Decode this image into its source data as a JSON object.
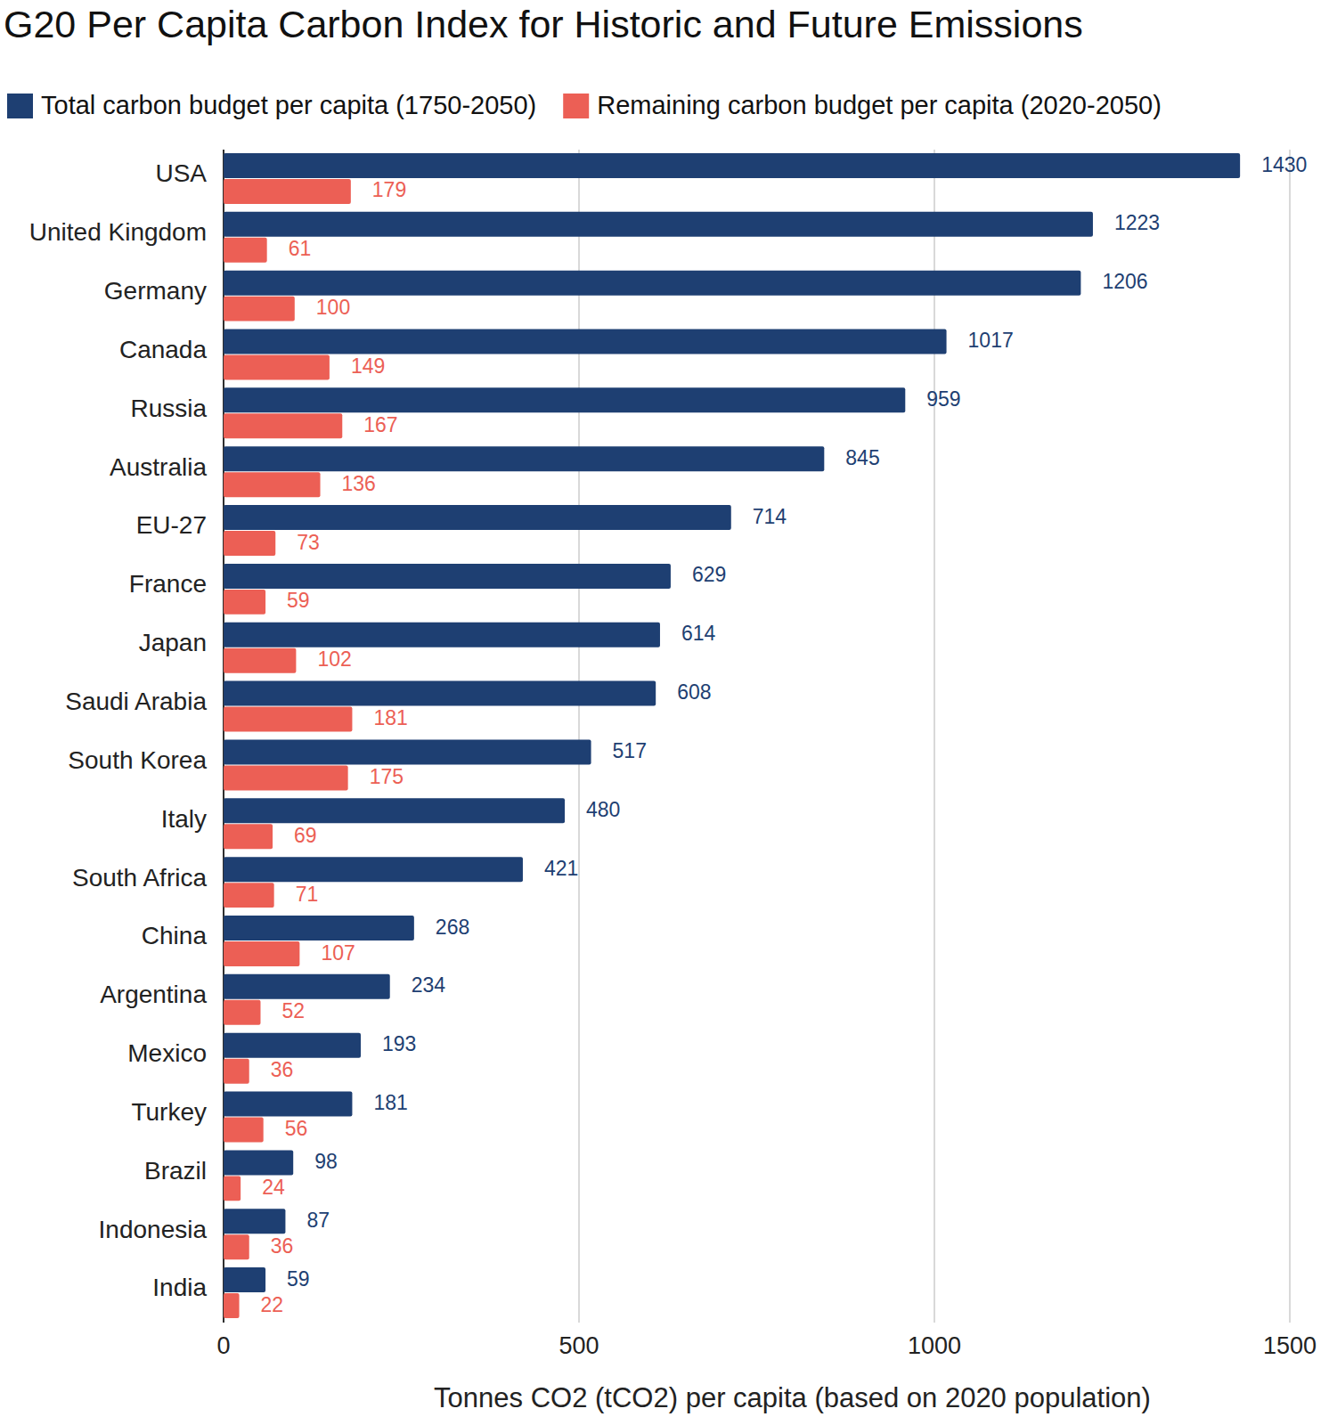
{
  "chart_data": {
    "type": "bar",
    "orientation": "horizontal",
    "title": "G20 Per Capita Carbon Index for Historic and Future Emissions",
    "x_label": "Tonnes CO2 (tCO2) per capita (based on 2020 population)",
    "categories": [
      "USA",
      "United Kingdom",
      "Germany",
      "Canada",
      "Russia",
      "Australia",
      "EU-27",
      "France",
      "Japan",
      "Saudi Arabia",
      "South Korea",
      "Italy",
      "South Africa",
      "China",
      "Argentina",
      "Mexico",
      "Turkey",
      "Brazil",
      "Indonesia",
      "India"
    ],
    "series": [
      {
        "name": "Total carbon budget per capita (1750-2050)",
        "color": "#1e3f72",
        "values": [
          1430,
          1223,
          1206,
          1017,
          959,
          845,
          714,
          629,
          614,
          608,
          517,
          480,
          421,
          268,
          234,
          193,
          181,
          98,
          87,
          59
        ]
      },
      {
        "name": "Remaining carbon budget per capita (2020-2050)",
        "color": "#ec5f55",
        "values": [
          179,
          61,
          100,
          149,
          167,
          136,
          73,
          59,
          102,
          181,
          175,
          69,
          71,
          107,
          52,
          36,
          56,
          24,
          36,
          22
        ]
      }
    ],
    "xlim": [
      0,
      1500
    ],
    "xticks": [
      0,
      500,
      1000,
      1500
    ],
    "grid": true,
    "legend": "top",
    "data_labels": true
  }
}
